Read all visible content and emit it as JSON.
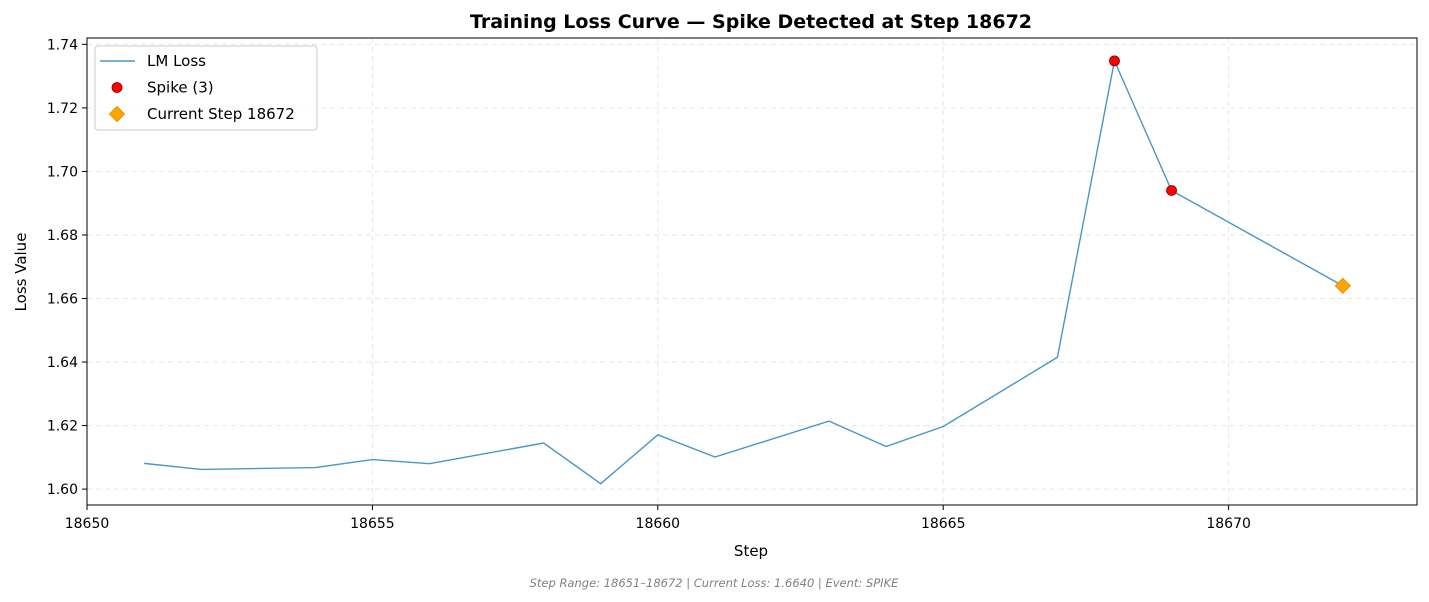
{
  "chart_data": {
    "type": "line",
    "title": "Training Loss Curve — Spike Detected at Step 18672",
    "xlabel": "Step",
    "ylabel": "Loss Value",
    "xlim": [
      18650,
      18673.3
    ],
    "ylim": [
      1.595,
      1.742
    ],
    "xticks": [
      18650,
      18655,
      18660,
      18665,
      18670
    ],
    "yticks": [
      1.6,
      1.62,
      1.64,
      1.66,
      1.68,
      1.7,
      1.72,
      1.74
    ],
    "grid": true,
    "legend_position": "top-left",
    "series": [
      {
        "name": "LM Loss",
        "kind": "line",
        "color": "#4a96c6",
        "x": [
          18651,
          18652,
          18654,
          18655,
          18656,
          18658,
          18659,
          18660,
          18661,
          18663,
          18664,
          18665,
          18667,
          18668,
          18669,
          18672
        ],
        "y": [
          1.6081,
          1.6062,
          1.6068,
          1.6093,
          1.608,
          1.6145,
          1.6017,
          1.6171,
          1.6101,
          1.6214,
          1.6134,
          1.6197,
          1.6415,
          1.7348,
          1.694,
          1.664
        ]
      },
      {
        "name": "Spike (3)",
        "kind": "scatter",
        "marker": "circle",
        "color": "#ff0000",
        "x": [
          18668,
          18669
        ],
        "y": [
          1.7348,
          1.694
        ]
      },
      {
        "name": "Current Step 18672",
        "kind": "scatter",
        "marker": "diamond",
        "color": "#ffa500",
        "x": [
          18672
        ],
        "y": [
          1.664
        ]
      }
    ],
    "footer": "Step Range: 18651–18672 | Current Loss: 1.6640 | Event: SPIKE"
  }
}
